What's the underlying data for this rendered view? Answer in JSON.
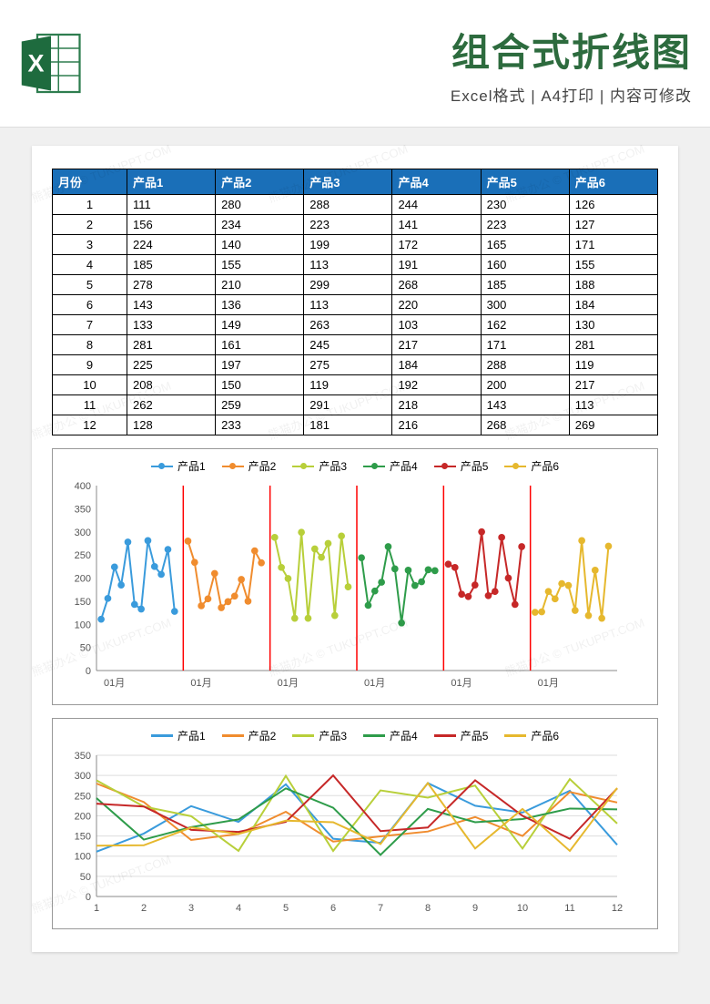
{
  "header": {
    "main_title": "组合式折线图",
    "sub_title": "Excel格式 | A4打印 | 内容可修改",
    "icon_label": "X"
  },
  "table": {
    "columns": [
      "月份",
      "产品1",
      "产品2",
      "产品3",
      "产品4",
      "产品5",
      "产品6"
    ],
    "rows": [
      [
        1,
        111,
        280,
        288,
        244,
        230,
        126
      ],
      [
        2,
        156,
        234,
        223,
        141,
        223,
        127
      ],
      [
        3,
        224,
        140,
        199,
        172,
        165,
        171
      ],
      [
        4,
        185,
        155,
        113,
        191,
        160,
        155
      ],
      [
        5,
        278,
        210,
        299,
        268,
        185,
        188
      ],
      [
        6,
        143,
        136,
        113,
        220,
        300,
        184
      ],
      [
        7,
        133,
        149,
        263,
        103,
        162,
        130
      ],
      [
        8,
        281,
        161,
        245,
        217,
        171,
        281
      ],
      [
        9,
        225,
        197,
        275,
        184,
        288,
        119
      ],
      [
        10,
        208,
        150,
        119,
        192,
        200,
        217
      ],
      [
        11,
        262,
        259,
        291,
        218,
        143,
        113
      ],
      [
        12,
        128,
        233,
        181,
        216,
        268,
        269
      ]
    ],
    "header_bg": "#1a6fb8",
    "header_fg": "#ffffff",
    "border_color": "#000000",
    "font_size": 13
  },
  "chart1": {
    "type": "line",
    "layout": "segmented",
    "series_names": [
      "产品1",
      "产品2",
      "产品3",
      "产品4",
      "产品5",
      "产品6"
    ],
    "series_colors": [
      "#3a9bdc",
      "#f08c2e",
      "#b8cf3a",
      "#2e9c4a",
      "#c62828",
      "#e6b82e"
    ],
    "marker": "circle",
    "marker_size": 5,
    "line_width": 2,
    "ylim": [
      0,
      400
    ],
    "ytick_step": 50,
    "separator_color": "#ff0000",
    "separator_width": 1.5,
    "x_labels": [
      "01月",
      "01月",
      "01月",
      "01月",
      "01月",
      "01月"
    ],
    "background": "#ffffff",
    "axis_color": "#888888",
    "label_fontsize": 11
  },
  "chart2": {
    "type": "line",
    "layout": "overlaid",
    "series_names": [
      "产品1",
      "产品2",
      "产品3",
      "产品4",
      "产品5",
      "产品6"
    ],
    "series_colors": [
      "#3a9bdc",
      "#f08c2e",
      "#b8cf3a",
      "#2e9c4a",
      "#c62828",
      "#e6b82e"
    ],
    "line_width": 2,
    "marker": "none",
    "ylim": [
      0,
      350
    ],
    "ytick_step": 50,
    "x_labels": [
      "1",
      "2",
      "3",
      "4",
      "5",
      "6",
      "7",
      "8",
      "9",
      "10",
      "11",
      "12"
    ],
    "grid_color": "#dddddd",
    "background": "#ffffff",
    "axis_color": "#888888",
    "label_fontsize": 11
  },
  "watermark_text": "熊猫办公 © TUKUPPT.COM"
}
